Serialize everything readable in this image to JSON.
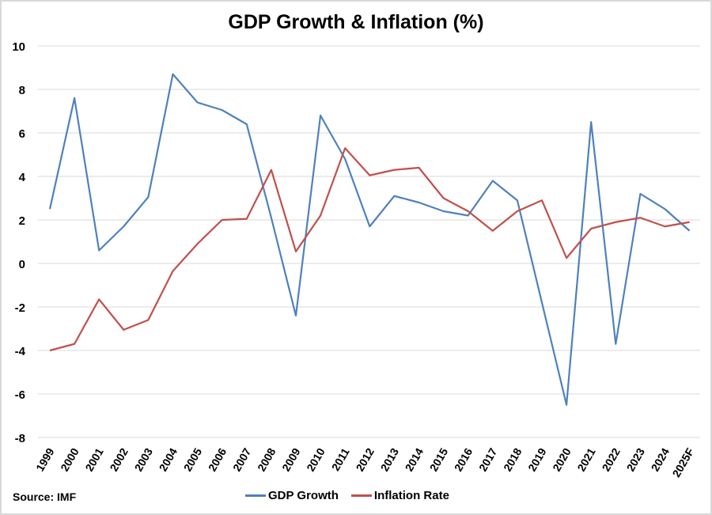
{
  "chart_data": {
    "type": "line",
    "title": "GDP Growth & Inflation (%)",
    "source": "Source: IMF",
    "categories": [
      "1999",
      "2000",
      "2001",
      "2002",
      "2003",
      "2004",
      "2005",
      "2006",
      "2007",
      "2008",
      "2009",
      "2010",
      "2011",
      "2012",
      "2013",
      "2014",
      "2015",
      "2016",
      "2017",
      "2018",
      "2019",
      "2020",
      "2021",
      "2022",
      "2023",
      "2024",
      "2025F"
    ],
    "series": [
      {
        "name": "GDP Growth",
        "color": "#4f81bd",
        "values": [
          2.5,
          7.6,
          0.6,
          1.7,
          3.05,
          8.7,
          7.4,
          7.05,
          6.4,
          2.1,
          -2.4,
          6.8,
          4.8,
          1.7,
          3.1,
          2.8,
          2.4,
          2.2,
          3.8,
          2.9,
          -1.8,
          -6.5,
          6.5,
          -3.7,
          3.2,
          2.5,
          1.5
        ]
      },
      {
        "name": "Inflation Rate",
        "color": "#c0504d",
        "values": [
          -4.0,
          -3.7,
          -1.65,
          -3.05,
          -2.6,
          -0.35,
          0.9,
          2.0,
          2.05,
          4.3,
          0.55,
          2.2,
          5.3,
          4.05,
          4.3,
          4.4,
          3.0,
          2.4,
          1.5,
          2.4,
          2.9,
          0.25,
          1.6,
          1.9,
          2.1,
          1.7,
          1.9
        ]
      }
    ],
    "ylim": [
      -8,
      10
    ],
    "yticks": [
      10,
      8,
      6,
      4,
      2,
      0,
      -2,
      -4,
      -6,
      -8
    ],
    "grid": true,
    "legend": "bottom"
  }
}
